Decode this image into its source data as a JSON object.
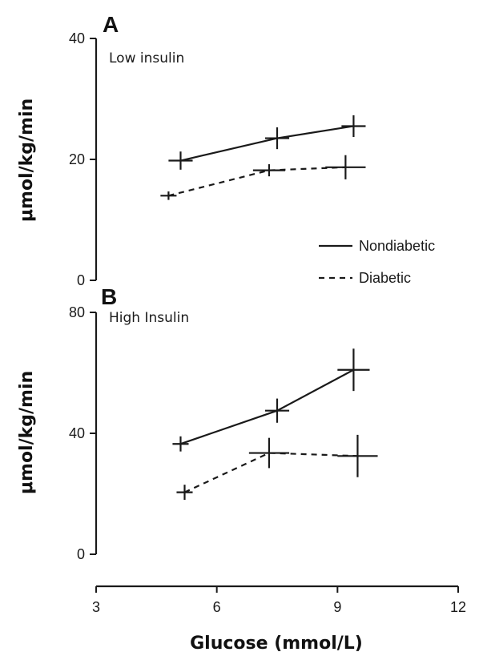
{
  "chart_data": [
    {
      "panel": "A",
      "subtitle": "Low insulin",
      "type": "line",
      "ylabel": "μmol/kg/min",
      "ylim": [
        0,
        40
      ],
      "yticks": [
        "0",
        "20",
        "40"
      ],
      "series": [
        {
          "name": "Nondiabetic",
          "style": "solid",
          "points": [
            {
              "x": 5.1,
              "y": 19.8,
              "err_y": 1.5,
              "err_x": 0.3
            },
            {
              "x": 7.5,
              "y": 23.5,
              "err_y": 1.8,
              "err_x": 0.3
            },
            {
              "x": 9.4,
              "y": 25.5,
              "err_y": 1.8,
              "err_x": 0.3
            }
          ]
        },
        {
          "name": "Diabetic",
          "style": "dashed",
          "points": [
            {
              "x": 4.8,
              "y": 14.0,
              "err_y": 0.7,
              "err_x": 0.2
            },
            {
              "x": 7.3,
              "y": 18.2,
              "err_y": 1.0,
              "err_x": 0.4
            },
            {
              "x": 9.2,
              "y": 18.7,
              "err_y": 2.0,
              "err_x": 0.5
            }
          ]
        }
      ]
    },
    {
      "panel": "B",
      "subtitle": "High Insulin",
      "type": "line",
      "ylabel": "μmol/kg/min",
      "ylim": [
        0,
        80
      ],
      "yticks": [
        "0",
        "40",
        "80"
      ],
      "series": [
        {
          "name": "Nondiabetic",
          "style": "solid",
          "points": [
            {
              "x": 5.1,
              "y": 36.5,
              "err_y": 2.5,
              "err_x": 0.2
            },
            {
              "x": 7.5,
              "y": 47.5,
              "err_y": 4.0,
              "err_x": 0.3
            },
            {
              "x": 9.4,
              "y": 61.0,
              "err_y": 7.0,
              "err_x": 0.4
            }
          ]
        },
        {
          "name": "Diabetic",
          "style": "dashed",
          "points": [
            {
              "x": 5.2,
              "y": 20.5,
              "err_y": 2.5,
              "err_x": 0.2
            },
            {
              "x": 7.3,
              "y": 33.5,
              "err_y": 5.0,
              "err_x": 0.5
            },
            {
              "x": 9.5,
              "y": 32.5,
              "err_y": 7.0,
              "err_x": 0.5
            }
          ]
        }
      ]
    }
  ],
  "x_axis": {
    "label": "Glucose (mmol/L)",
    "xlim": [
      3,
      12
    ],
    "ticks": [
      "3",
      "6",
      "9",
      "12"
    ]
  },
  "legend": {
    "placement": "right, between panels",
    "entries": [
      {
        "label": "Nondiabetic",
        "style": "solid"
      },
      {
        "label": "Diabetic",
        "style": "dashed"
      }
    ]
  }
}
